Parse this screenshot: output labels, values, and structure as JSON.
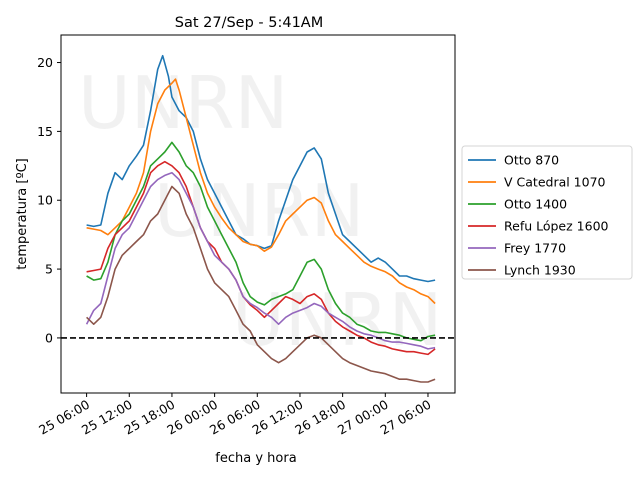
{
  "chart_data": {
    "type": "line",
    "title": "Sat 27/Sep - 5:41AM",
    "xlabel": "fecha y hora",
    "ylabel": "temperatura [ºC]",
    "x_ticks": [
      "25 06:00",
      "25 12:00",
      "25 18:00",
      "26 00:00",
      "26 06:00",
      "26 12:00",
      "26 18:00",
      "27 00:00",
      "27 06:00"
    ],
    "x_tick_hours": [
      6,
      12,
      18,
      24,
      30,
      36,
      42,
      48,
      54
    ],
    "xlim_hours": [
      2.4,
      57.8
    ],
    "y_ticks": [
      0,
      5,
      10,
      15,
      20
    ],
    "ylim": [
      -4.0,
      22.0
    ],
    "reference_line": {
      "y": 0,
      "style": "dashed",
      "color": "#000000"
    },
    "watermark": [
      "UNRN",
      "UNRN",
      "UNRN"
    ],
    "legend_position": "right",
    "grid": false,
    "series": [
      {
        "name": "Otto 870",
        "color": "#1f77b4",
        "points": [
          [
            6,
            8.2
          ],
          [
            7,
            8.1
          ],
          [
            8,
            8.2
          ],
          [
            9,
            10.5
          ],
          [
            10,
            12.0
          ],
          [
            11,
            11.5
          ],
          [
            12,
            12.5
          ],
          [
            13,
            13.2
          ],
          [
            14,
            14.0
          ],
          [
            15,
            16.5
          ],
          [
            16,
            19.5
          ],
          [
            16.7,
            20.5
          ],
          [
            17.5,
            19.0
          ],
          [
            18,
            17.5
          ],
          [
            19,
            16.5
          ],
          [
            20,
            16.0
          ],
          [
            21,
            15.0
          ],
          [
            22,
            13.0
          ],
          [
            23,
            11.5
          ],
          [
            24,
            10.5
          ],
          [
            25,
            9.5
          ],
          [
            26,
            8.5
          ],
          [
            27,
            7.5
          ],
          [
            28,
            7.2
          ],
          [
            29,
            6.8
          ],
          [
            30,
            6.7
          ],
          [
            31,
            6.5
          ],
          [
            32,
            6.7
          ],
          [
            33,
            8.5
          ],
          [
            34,
            10.0
          ],
          [
            35,
            11.5
          ],
          [
            36,
            12.5
          ],
          [
            37,
            13.5
          ],
          [
            38,
            13.8
          ],
          [
            39,
            13.0
          ],
          [
            40,
            10.5
          ],
          [
            41,
            9.0
          ],
          [
            42,
            7.5
          ],
          [
            43,
            7.0
          ],
          [
            44,
            6.5
          ],
          [
            45,
            6.0
          ],
          [
            46,
            5.5
          ],
          [
            47,
            5.8
          ],
          [
            48,
            5.5
          ],
          [
            49,
            5.0
          ],
          [
            50,
            4.5
          ],
          [
            51,
            4.5
          ],
          [
            52,
            4.3
          ],
          [
            53,
            4.2
          ],
          [
            54,
            4.1
          ],
          [
            55,
            4.2
          ]
        ]
      },
      {
        "name": "V Catedral 1070",
        "color": "#ff7f0e",
        "points": [
          [
            6,
            8.0
          ],
          [
            7,
            7.9
          ],
          [
            8,
            7.8
          ],
          [
            9,
            7.5
          ],
          [
            10,
            8.0
          ],
          [
            11,
            8.5
          ],
          [
            12,
            9.5
          ],
          [
            13,
            10.5
          ],
          [
            14,
            12.0
          ],
          [
            15,
            15.0
          ],
          [
            16,
            17.0
          ],
          [
            17,
            18.0
          ],
          [
            18,
            18.5
          ],
          [
            18.5,
            18.8
          ],
          [
            19,
            18.0
          ],
          [
            20,
            16.0
          ],
          [
            21,
            14.0
          ],
          [
            22,
            12.0
          ],
          [
            23,
            10.5
          ],
          [
            24,
            9.5
          ],
          [
            25,
            8.7
          ],
          [
            26,
            8.0
          ],
          [
            27,
            7.5
          ],
          [
            28,
            7.0
          ],
          [
            29,
            6.8
          ],
          [
            30,
            6.7
          ],
          [
            31,
            6.3
          ],
          [
            32,
            6.6
          ],
          [
            33,
            7.5
          ],
          [
            34,
            8.5
          ],
          [
            35,
            9.0
          ],
          [
            36,
            9.5
          ],
          [
            37,
            10.0
          ],
          [
            38,
            10.2
          ],
          [
            39,
            9.8
          ],
          [
            40,
            8.5
          ],
          [
            41,
            7.5
          ],
          [
            42,
            7.0
          ],
          [
            43,
            6.5
          ],
          [
            44,
            6.0
          ],
          [
            45,
            5.5
          ],
          [
            46,
            5.2
          ],
          [
            47,
            5.0
          ],
          [
            48,
            4.8
          ],
          [
            49,
            4.5
          ],
          [
            50,
            4.0
          ],
          [
            51,
            3.7
          ],
          [
            52,
            3.5
          ],
          [
            53,
            3.2
          ],
          [
            54,
            3.0
          ],
          [
            55,
            2.5
          ]
        ]
      },
      {
        "name": "Otto 1400",
        "color": "#2ca02c",
        "points": [
          [
            6,
            4.5
          ],
          [
            7,
            4.2
          ],
          [
            8,
            4.3
          ],
          [
            9,
            5.5
          ],
          [
            10,
            7.5
          ],
          [
            11,
            8.5
          ],
          [
            12,
            9.0
          ],
          [
            13,
            10.0
          ],
          [
            14,
            11.0
          ],
          [
            15,
            12.5
          ],
          [
            16,
            13.0
          ],
          [
            17,
            13.5
          ],
          [
            18,
            14.2
          ],
          [
            19,
            13.5
          ],
          [
            20,
            12.5
          ],
          [
            21,
            12.0
          ],
          [
            22,
            11.0
          ],
          [
            23,
            9.5
          ],
          [
            24,
            8.5
          ],
          [
            25,
            7.5
          ],
          [
            26,
            6.5
          ],
          [
            27,
            5.5
          ],
          [
            28,
            4.0
          ],
          [
            29,
            3.0
          ],
          [
            30,
            2.6
          ],
          [
            31,
            2.4
          ],
          [
            32,
            2.8
          ],
          [
            33,
            3.0
          ],
          [
            34,
            3.2
          ],
          [
            35,
            3.5
          ],
          [
            36,
            4.5
          ],
          [
            37,
            5.5
          ],
          [
            38,
            5.7
          ],
          [
            39,
            5.0
          ],
          [
            40,
            3.5
          ],
          [
            41,
            2.5
          ],
          [
            42,
            1.8
          ],
          [
            43,
            1.5
          ],
          [
            44,
            1.0
          ],
          [
            45,
            0.8
          ],
          [
            46,
            0.5
          ],
          [
            47,
            0.4
          ],
          [
            48,
            0.4
          ],
          [
            49,
            0.3
          ],
          [
            50,
            0.2
          ],
          [
            51,
            0.0
          ],
          [
            52,
            -0.1
          ],
          [
            53,
            -0.2
          ],
          [
            54,
            0.1
          ],
          [
            55,
            0.2
          ]
        ]
      },
      {
        "name": "Refu López 1600",
        "color": "#d62728",
        "points": [
          [
            6,
            4.8
          ],
          [
            7,
            4.9
          ],
          [
            8,
            5.0
          ],
          [
            9,
            6.5
          ],
          [
            10,
            7.5
          ],
          [
            11,
            8.0
          ],
          [
            12,
            8.5
          ],
          [
            13,
            9.5
          ],
          [
            14,
            10.5
          ],
          [
            15,
            12.0
          ],
          [
            16,
            12.5
          ],
          [
            17,
            12.8
          ],
          [
            18,
            12.5
          ],
          [
            19,
            12.0
          ],
          [
            20,
            11.0
          ],
          [
            21,
            9.5
          ],
          [
            22,
            8.0
          ],
          [
            23,
            7.0
          ],
          [
            24,
            6.5
          ],
          [
            25,
            5.5
          ],
          [
            26,
            5.0
          ],
          [
            27,
            4.2
          ],
          [
            28,
            3.0
          ],
          [
            29,
            2.4
          ],
          [
            30,
            2.0
          ],
          [
            31,
            1.5
          ],
          [
            32,
            2.0
          ],
          [
            33,
            2.5
          ],
          [
            34,
            3.0
          ],
          [
            35,
            2.8
          ],
          [
            36,
            2.5
          ],
          [
            37,
            3.0
          ],
          [
            38,
            3.2
          ],
          [
            39,
            2.8
          ],
          [
            40,
            1.8
          ],
          [
            41,
            1.2
          ],
          [
            42,
            0.8
          ],
          [
            43,
            0.5
          ],
          [
            44,
            0.2
          ],
          [
            45,
            0.0
          ],
          [
            46,
            -0.3
          ],
          [
            47,
            -0.5
          ],
          [
            48,
            -0.6
          ],
          [
            49,
            -0.8
          ],
          [
            50,
            -0.9
          ],
          [
            51,
            -1.0
          ],
          [
            52,
            -1.0
          ],
          [
            53,
            -1.1
          ],
          [
            54,
            -1.2
          ],
          [
            55,
            -0.8
          ]
        ]
      },
      {
        "name": "Frey 1770",
        "color": "#9467bd",
        "points": [
          [
            6,
            1.0
          ],
          [
            7,
            2.0
          ],
          [
            8,
            2.5
          ],
          [
            9,
            4.5
          ],
          [
            10,
            6.5
          ],
          [
            11,
            7.5
          ],
          [
            12,
            8.0
          ],
          [
            13,
            9.0
          ],
          [
            14,
            10.0
          ],
          [
            15,
            11.0
          ],
          [
            16,
            11.5
          ],
          [
            17,
            11.8
          ],
          [
            18,
            12.0
          ],
          [
            19,
            11.5
          ],
          [
            20,
            10.5
          ],
          [
            21,
            9.5
          ],
          [
            22,
            8.0
          ],
          [
            23,
            7.0
          ],
          [
            24,
            6.0
          ],
          [
            25,
            5.5
          ],
          [
            26,
            5.0
          ],
          [
            27,
            4.2
          ],
          [
            28,
            3.0
          ],
          [
            29,
            2.5
          ],
          [
            30,
            2.2
          ],
          [
            31,
            1.8
          ],
          [
            32,
            1.5
          ],
          [
            33,
            1.0
          ],
          [
            34,
            1.5
          ],
          [
            35,
            1.8
          ],
          [
            36,
            2.0
          ],
          [
            37,
            2.2
          ],
          [
            38,
            2.5
          ],
          [
            39,
            2.3
          ],
          [
            40,
            1.8
          ],
          [
            41,
            1.5
          ],
          [
            42,
            1.2
          ],
          [
            43,
            0.8
          ],
          [
            44,
            0.5
          ],
          [
            45,
            0.3
          ],
          [
            46,
            0.2
          ],
          [
            47,
            0.0
          ],
          [
            48,
            -0.2
          ],
          [
            49,
            -0.3
          ],
          [
            50,
            -0.3
          ],
          [
            51,
            -0.4
          ],
          [
            52,
            -0.5
          ],
          [
            53,
            -0.6
          ],
          [
            54,
            -0.8
          ],
          [
            55,
            -0.7
          ]
        ]
      },
      {
        "name": "Lynch 1930",
        "color": "#8c564b",
        "points": [
          [
            6,
            1.5
          ],
          [
            7,
            1.0
          ],
          [
            8,
            1.5
          ],
          [
            9,
            3.0
          ],
          [
            10,
            5.0
          ],
          [
            11,
            6.0
          ],
          [
            12,
            6.5
          ],
          [
            13,
            7.0
          ],
          [
            14,
            7.5
          ],
          [
            15,
            8.5
          ],
          [
            16,
            9.0
          ],
          [
            17,
            10.0
          ],
          [
            18,
            11.0
          ],
          [
            19,
            10.5
          ],
          [
            20,
            9.0
          ],
          [
            21,
            8.0
          ],
          [
            22,
            6.5
          ],
          [
            23,
            5.0
          ],
          [
            24,
            4.0
          ],
          [
            25,
            3.5
          ],
          [
            26,
            3.0
          ],
          [
            27,
            2.0
          ],
          [
            28,
            1.0
          ],
          [
            29,
            0.5
          ],
          [
            30,
            -0.5
          ],
          [
            31,
            -1.0
          ],
          [
            32,
            -1.5
          ],
          [
            33,
            -1.8
          ],
          [
            34,
            -1.5
          ],
          [
            35,
            -1.0
          ],
          [
            36,
            -0.5
          ],
          [
            37,
            0.0
          ],
          [
            38,
            0.2
          ],
          [
            39,
            0.0
          ],
          [
            40,
            -0.5
          ],
          [
            41,
            -1.0
          ],
          [
            42,
            -1.5
          ],
          [
            43,
            -1.8
          ],
          [
            44,
            -2.0
          ],
          [
            45,
            -2.2
          ],
          [
            46,
            -2.4
          ],
          [
            47,
            -2.5
          ],
          [
            48,
            -2.6
          ],
          [
            49,
            -2.8
          ],
          [
            50,
            -3.0
          ],
          [
            51,
            -3.0
          ],
          [
            52,
            -3.1
          ],
          [
            53,
            -3.2
          ],
          [
            54,
            -3.2
          ],
          [
            55,
            -3.0
          ]
        ]
      }
    ]
  }
}
